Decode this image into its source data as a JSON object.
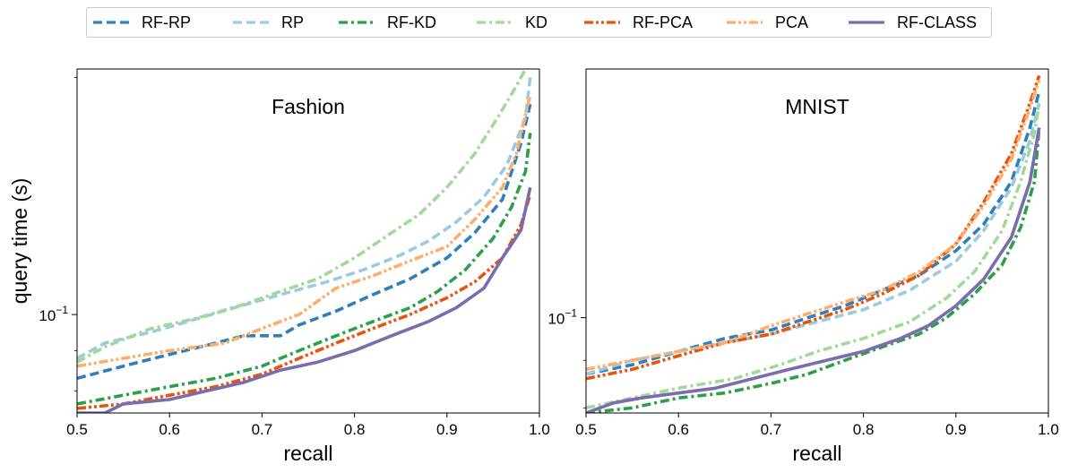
{
  "legend": {
    "location": "top-center",
    "entries": [
      {
        "name": "RF-RP",
        "color": "#2e7fba",
        "dash": "dashed"
      },
      {
        "name": "RP",
        "color": "#9ecae1",
        "dash": "dashed"
      },
      {
        "name": "RF-KD",
        "color": "#2ca048",
        "dash": "dashdot"
      },
      {
        "name": "KD",
        "color": "#a1d99b",
        "dash": "dashdot"
      },
      {
        "name": "RF-PCA",
        "color": "#e6550d",
        "dash": "dashdotdot"
      },
      {
        "name": "PCA",
        "color": "#fdae6b",
        "dash": "dashdotdot"
      },
      {
        "name": "RF-CLASS",
        "color": "#7b6cae",
        "dash": "solid"
      }
    ]
  },
  "chart_data": [
    {
      "type": "line",
      "title": "Fashion",
      "xlabel": "recall",
      "ylabel": "query time (s)",
      "yscale": "log",
      "xlim": [
        0.5,
        1.0
      ],
      "ylim": [
        0.075,
        0.205
      ],
      "xticks": [
        "0.5",
        "0.6",
        "0.7",
        "0.8",
        "0.9",
        "1.0"
      ],
      "yticks": [
        {
          "value": 0.1,
          "base": "10",
          "exp": "−1"
        }
      ],
      "grid": false,
      "series": [
        {
          "name": "RF-RP",
          "x": [
            0.5,
            0.55,
            0.6,
            0.65,
            0.68,
            0.72,
            0.74,
            0.78,
            0.82,
            0.86,
            0.9,
            0.93,
            0.96,
            0.98,
            0.99
          ],
          "y": [
            0.083,
            0.086,
            0.089,
            0.092,
            0.094,
            0.094,
            0.097,
            0.101,
            0.106,
            0.111,
            0.118,
            0.127,
            0.14,
            0.165,
            0.185
          ]
        },
        {
          "name": "RP",
          "x": [
            0.5,
            0.53,
            0.58,
            0.62,
            0.67,
            0.72,
            0.77,
            0.81,
            0.85,
            0.88,
            0.91,
            0.94,
            0.965,
            0.985,
            0.99
          ],
          "y": [
            0.088,
            0.092,
            0.095,
            0.098,
            0.102,
            0.106,
            0.11,
            0.114,
            0.119,
            0.124,
            0.131,
            0.141,
            0.155,
            0.178,
            0.2
          ]
        },
        {
          "name": "RF-KD",
          "x": [
            0.5,
            0.55,
            0.6,
            0.65,
            0.7,
            0.74,
            0.78,
            0.82,
            0.86,
            0.89,
            0.92,
            0.95,
            0.97,
            0.985,
            0.99
          ],
          "y": [
            0.077,
            0.079,
            0.081,
            0.083,
            0.086,
            0.09,
            0.094,
            0.098,
            0.102,
            0.107,
            0.114,
            0.125,
            0.137,
            0.152,
            0.17
          ]
        },
        {
          "name": "KD",
          "x": [
            0.5,
            0.53,
            0.58,
            0.63,
            0.68,
            0.72,
            0.76,
            0.8,
            0.84,
            0.87,
            0.9,
            0.93,
            0.955,
            0.975,
            0.985
          ],
          "y": [
            0.087,
            0.091,
            0.096,
            0.099,
            0.103,
            0.107,
            0.111,
            0.118,
            0.127,
            0.134,
            0.145,
            0.16,
            0.178,
            0.195,
            0.205
          ]
        },
        {
          "name": "RF-PCA",
          "x": [
            0.5,
            0.55,
            0.6,
            0.65,
            0.7,
            0.74,
            0.78,
            0.82,
            0.86,
            0.9,
            0.93,
            0.96,
            0.98,
            0.99
          ],
          "y": [
            0.076,
            0.077,
            0.079,
            0.081,
            0.084,
            0.088,
            0.092,
            0.096,
            0.1,
            0.105,
            0.11,
            0.118,
            0.13,
            0.142
          ]
        },
        {
          "name": "PCA",
          "x": [
            0.5,
            0.55,
            0.6,
            0.66,
            0.7,
            0.74,
            0.78,
            0.82,
            0.86,
            0.9,
            0.93,
            0.96,
            0.975,
            0.99
          ],
          "y": [
            0.086,
            0.088,
            0.09,
            0.092,
            0.096,
            0.1,
            0.108,
            0.112,
            0.117,
            0.122,
            0.132,
            0.145,
            0.16,
            0.19
          ]
        },
        {
          "name": "RF-CLASS",
          "x": [
            0.5,
            0.53,
            0.55,
            0.6,
            0.64,
            0.68,
            0.72,
            0.76,
            0.8,
            0.84,
            0.88,
            0.91,
            0.94,
            0.96,
            0.98,
            0.99
          ],
          "y": [
            0.075,
            0.075,
            0.077,
            0.078,
            0.08,
            0.082,
            0.085,
            0.087,
            0.09,
            0.094,
            0.098,
            0.102,
            0.108,
            0.118,
            0.128,
            0.145
          ]
        }
      ]
    },
    {
      "type": "line",
      "title": "MNIST",
      "xlabel": "recall",
      "ylabel": "",
      "yscale": "log",
      "xlim": [
        0.5,
        1.0
      ],
      "ylim": [
        0.079,
        0.185
      ],
      "xticks": [
        "0.5",
        "0.6",
        "0.7",
        "0.8",
        "0.9",
        "1.0"
      ],
      "yticks": [
        {
          "value": 0.1,
          "base": "10",
          "exp": "−1"
        }
      ],
      "grid": false,
      "series": [
        {
          "name": "RF-RP",
          "x": [
            0.5,
            0.55,
            0.6,
            0.65,
            0.7,
            0.74,
            0.78,
            0.82,
            0.86,
            0.9,
            0.93,
            0.96,
            0.98,
            0.99
          ],
          "y": [
            0.087,
            0.089,
            0.092,
            0.095,
            0.097,
            0.1,
            0.103,
            0.107,
            0.111,
            0.118,
            0.126,
            0.14,
            0.16,
            0.175
          ]
        },
        {
          "name": "RP",
          "x": [
            0.5,
            0.55,
            0.6,
            0.65,
            0.7,
            0.75,
            0.8,
            0.85,
            0.9,
            0.93,
            0.96,
            0.98,
            0.99
          ],
          "y": [
            0.087,
            0.09,
            0.092,
            0.094,
            0.096,
            0.099,
            0.102,
            0.107,
            0.115,
            0.124,
            0.138,
            0.155,
            0.17
          ]
        },
        {
          "name": "RF-KD",
          "x": [
            0.5,
            0.55,
            0.6,
            0.65,
            0.7,
            0.74,
            0.78,
            0.82,
            0.86,
            0.89,
            0.92,
            0.95,
            0.97,
            0.985,
            0.99
          ],
          "y": [
            0.079,
            0.08,
            0.082,
            0.083,
            0.085,
            0.087,
            0.09,
            0.093,
            0.096,
            0.1,
            0.106,
            0.114,
            0.125,
            0.14,
            0.16
          ]
        },
        {
          "name": "KD",
          "x": [
            0.5,
            0.55,
            0.6,
            0.66,
            0.71,
            0.75,
            0.8,
            0.85,
            0.89,
            0.92,
            0.95,
            0.97,
            0.985,
            0.99
          ],
          "y": [
            0.08,
            0.082,
            0.084,
            0.086,
            0.089,
            0.092,
            0.095,
            0.099,
            0.105,
            0.112,
            0.124,
            0.14,
            0.158,
            0.17
          ]
        },
        {
          "name": "RF-PCA",
          "x": [
            0.5,
            0.55,
            0.6,
            0.65,
            0.7,
            0.74,
            0.78,
            0.82,
            0.86,
            0.9,
            0.93,
            0.96,
            0.98,
            0.99
          ],
          "y": [
            0.086,
            0.088,
            0.091,
            0.094,
            0.096,
            0.099,
            0.102,
            0.106,
            0.111,
            0.12,
            0.133,
            0.15,
            0.17,
            0.182
          ]
        },
        {
          "name": "PCA",
          "x": [
            0.5,
            0.55,
            0.6,
            0.65,
            0.7,
            0.74,
            0.78,
            0.82,
            0.86,
            0.9,
            0.93,
            0.96,
            0.98,
            0.99
          ],
          "y": [
            0.088,
            0.09,
            0.092,
            0.094,
            0.098,
            0.101,
            0.104,
            0.107,
            0.112,
            0.12,
            0.132,
            0.148,
            0.168,
            0.18
          ]
        },
        {
          "name": "RF-CLASS",
          "x": [
            0.5,
            0.53,
            0.56,
            0.6,
            0.64,
            0.68,
            0.72,
            0.76,
            0.8,
            0.84,
            0.87,
            0.9,
            0.93,
            0.96,
            0.98,
            0.99
          ],
          "y": [
            0.079,
            0.081,
            0.082,
            0.083,
            0.084,
            0.086,
            0.088,
            0.09,
            0.092,
            0.095,
            0.098,
            0.103,
            0.11,
            0.122,
            0.14,
            0.16
          ]
        }
      ]
    }
  ]
}
